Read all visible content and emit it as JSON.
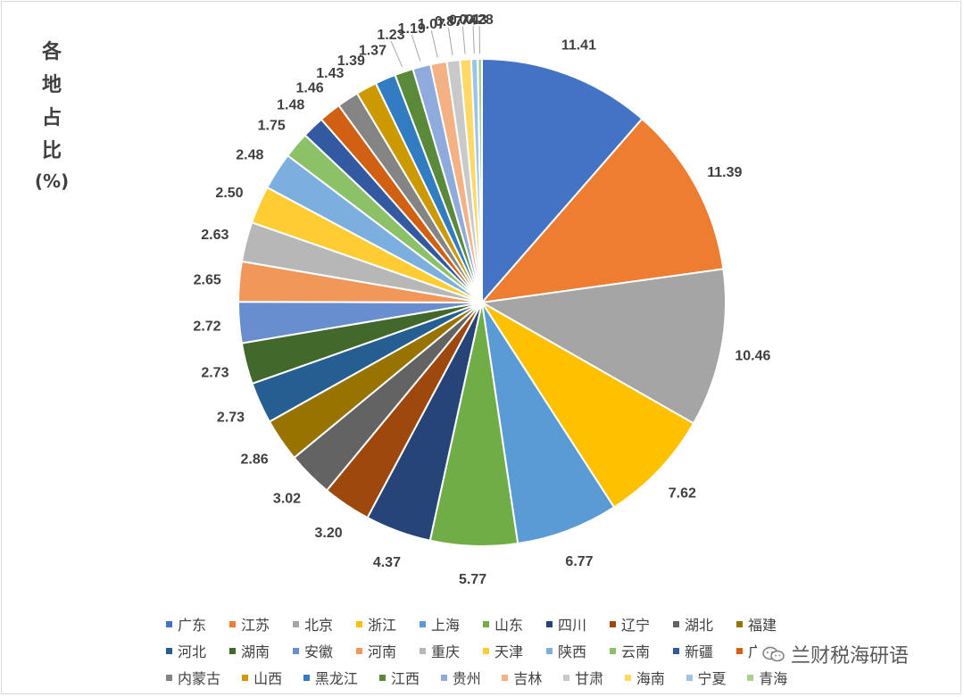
{
  "chart_data": {
    "type": "pie",
    "ylabel_chars": [
      "各",
      "地",
      "占",
      "比"
    ],
    "ylabel_unit": "(%)",
    "categories": [
      "广东",
      "江苏",
      "北京",
      "浙江",
      "上海",
      "山东",
      "四川",
      "辽宁",
      "湖北",
      "福建",
      "河北",
      "湖南",
      "安徽",
      "河南",
      "重庆",
      "天津",
      "陕西",
      "云南",
      "新疆",
      "广西",
      "内蒙古",
      "山西",
      "黑龙江",
      "江西",
      "贵州",
      "吉林",
      "甘肃",
      "海南",
      "宁夏",
      "青海"
    ],
    "values": [
      11.41,
      11.39,
      10.46,
      7.62,
      6.77,
      5.77,
      4.37,
      3.2,
      3.02,
      2.86,
      2.73,
      2.73,
      2.72,
      2.65,
      2.63,
      2.5,
      2.48,
      1.75,
      1.48,
      1.46,
      1.43,
      1.39,
      1.37,
      1.23,
      1.19,
      1.07,
      0.87,
      0.74,
      0.43,
      0.28
    ],
    "value_labels": [
      "11.41",
      "11.39",
      "10.46",
      "7.62",
      "6.77",
      "5.77",
      "4.37",
      "3.20",
      "3.02",
      "2.86",
      "2.73",
      "2.73",
      "2.72",
      "2.65",
      "2.63",
      "2.50",
      "2.48",
      "1.75",
      "1.48",
      "1.46",
      "1.43",
      "1.39",
      "1.37",
      "1.23",
      "1.19",
      "1.07",
      "0.87",
      "0.74",
      "0.43",
      "0.28"
    ],
    "colors": [
      "#4472C4",
      "#ED7D31",
      "#A5A5A5",
      "#FFC000",
      "#5B9BD5",
      "#70AD47",
      "#264478",
      "#9E480E",
      "#636363",
      "#997300",
      "#255E91",
      "#43682B",
      "#698ED0",
      "#F1975A",
      "#B7B7B7",
      "#FFCD33",
      "#7CAFDD",
      "#8CC168",
      "#335AA1",
      "#D26012",
      "#848484",
      "#CC9A00",
      "#327DC2",
      "#5A8A39",
      "#8FAADC",
      "#F4B183",
      "#C9C9C9",
      "#FFD966",
      "#9DC3E6",
      "#A9D18E"
    ],
    "legend": "bottom"
  },
  "watermark": "兰财税海研语"
}
